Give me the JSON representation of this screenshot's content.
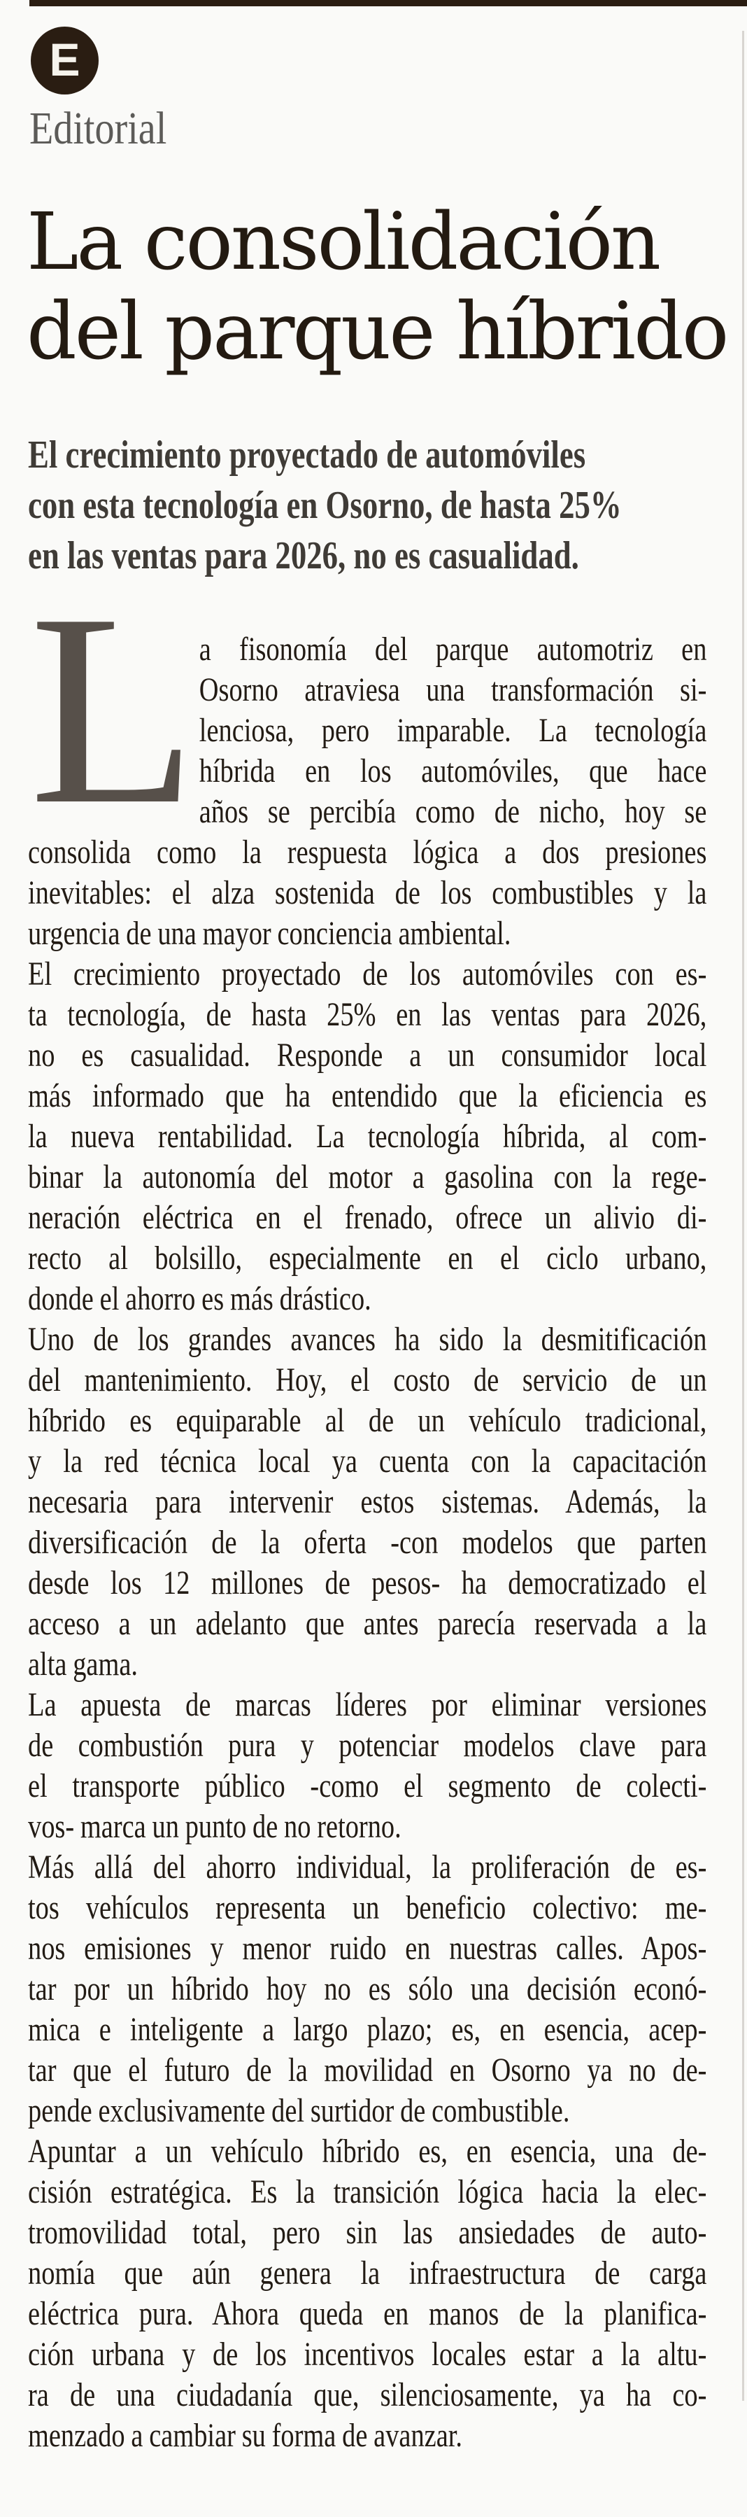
{
  "colors": {
    "paper": "#fafaf8",
    "ink": "#221b14",
    "headline_ink": "#231a11",
    "standfirst_ink": "#3f3b36",
    "section_label_ink": "#5c5b58",
    "drop_cap_ink": "#57504a",
    "brand_dark": "#2a1d12",
    "logo_letter_color": "#f6f3ec",
    "column_rule": "#d8d5d1"
  },
  "masthead": {
    "logo_letter": "E",
    "section_label": "Editorial"
  },
  "headline": {
    "lines": [
      "La consolidación",
      "del parque híbrido"
    ]
  },
  "standfirst": {
    "lines": [
      "El crecimiento proyectado de automóviles",
      "con esta tecnología en Osorno, de hasta 25%",
      "en las ventas para 2026, no es casualidad."
    ]
  },
  "body": {
    "drop_cap": "L",
    "drop_cap_lines": [
      "a fisonomía del parque automotriz en",
      "Osorno atraviesa una transformación si-",
      "lenciosa, pero imparable. La tecnología",
      "híbrida en los automóviles, que hace",
      "años se percibía como de nicho, hoy se"
    ],
    "paragraphs": [
      {
        "lines": [
          "consolida como la respuesta lógica a dos presiones",
          "inevitables: el alza sostenida de los combustibles y la",
          "urgencia de una mayor conciencia ambiental."
        ]
      },
      {
        "lines": [
          "El crecimiento proyectado de los automóviles con es-",
          "ta tecnología, de hasta 25% en las ventas para 2026,",
          "no es casualidad. Responde a un consumidor local",
          "más informado que ha entendido que la eficiencia es",
          "la nueva rentabilidad. La tecnología híbrida, al com-",
          "binar la autonomía del motor a gasolina con la rege-",
          "neración eléctrica en el frenado, ofrece un alivio di-",
          "recto al bolsillo, especialmente en el ciclo urbano,",
          "donde el ahorro es más drástico."
        ]
      },
      {
        "lines": [
          "Uno de los grandes avances ha sido la desmitificación",
          "del mantenimiento. Hoy, el costo de servicio de un",
          "híbrido es equiparable al de un vehículo tradicional,",
          "y la red técnica local ya cuenta con la capacitación",
          "necesaria para intervenir estos sistemas. Además, la",
          "diversificación de la oferta -con modelos que parten",
          "desde los 12 millones de pesos- ha democratizado el",
          "acceso a un adelanto que antes parecía reservada a la",
          "alta gama."
        ]
      },
      {
        "lines": [
          "La apuesta de marcas líderes por eliminar versiones",
          "de combustión pura y potenciar modelos clave para",
          "el transporte público -como el segmento de colecti-",
          "vos- marca un punto de no retorno."
        ]
      },
      {
        "lines": [
          "Más allá del ahorro individual, la proliferación de es-",
          "tos vehículos representa un beneficio colectivo: me-",
          "nos emisiones y menor ruido en nuestras calles. Apos-",
          "tar por un híbrido hoy no es sólo una decisión econó-",
          "mica e inteligente a largo plazo; es, en esencia, acep-",
          "tar que el futuro de la movilidad en Osorno ya no de-",
          "pende exclusivamente del surtidor de combustible."
        ]
      },
      {
        "lines": [
          "Apuntar a un vehículo híbrido es, en esencia, una de-",
          "cisión estratégica. Es la transición lógica hacia la elec-",
          "tromovilidad total, pero sin las ansiedades de auto-",
          "nomía que aún genera la infraestructura de carga",
          "eléctrica pura. Ahora queda en manos de la planifica-",
          "ción urbana y de los incentivos locales estar a la altu-",
          "ra de una ciudadanía que, silenciosamente, ya ha co-",
          "menzado a cambiar su forma de avanzar."
        ]
      }
    ]
  }
}
